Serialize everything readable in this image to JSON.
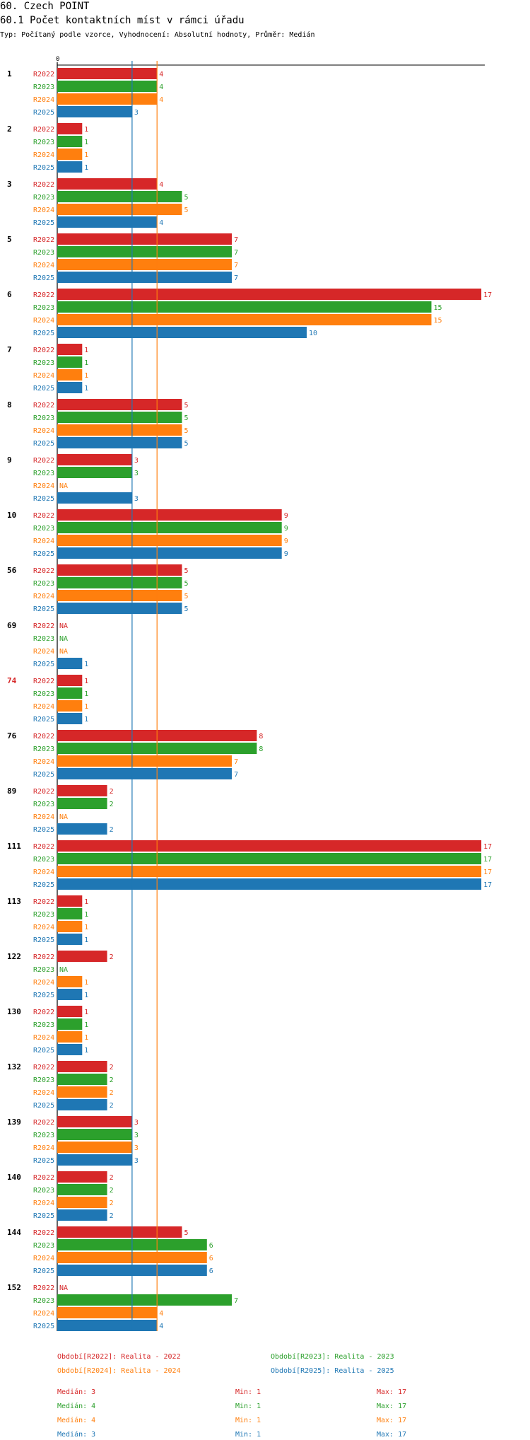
{
  "header": {
    "title": "60. Czech POINT",
    "subtitle": "60.1 Počet kontaktních míst v rámci úřadu",
    "meta": "Typ: Počítaný podle vzorce, Vyhodnocení: Absolutní hodnoty, Průměr: Medián"
  },
  "colors": {
    "R2022": "#d62728",
    "R2023": "#2ca02c",
    "R2024": "#ff7f0e",
    "R2025": "#1f77b4"
  },
  "chart_data": {
    "type": "bar",
    "orientation": "horizontal",
    "axis_zero_label": "0",
    "xlim": [
      0,
      17
    ],
    "series_names": [
      "R2022",
      "R2023",
      "R2024",
      "R2025"
    ],
    "na_label": "NA",
    "groups": [
      {
        "label": "1",
        "highlight": false,
        "values": [
          4,
          4,
          4,
          3
        ]
      },
      {
        "label": "2",
        "highlight": false,
        "values": [
          1,
          1,
          1,
          1
        ]
      },
      {
        "label": "3",
        "highlight": false,
        "values": [
          4,
          5,
          5,
          4
        ]
      },
      {
        "label": "5",
        "highlight": false,
        "values": [
          7,
          7,
          7,
          7
        ]
      },
      {
        "label": "6",
        "highlight": false,
        "values": [
          17,
          15,
          15,
          10
        ]
      },
      {
        "label": "7",
        "highlight": false,
        "values": [
          1,
          1,
          1,
          1
        ]
      },
      {
        "label": "8",
        "highlight": false,
        "values": [
          5,
          5,
          5,
          5
        ]
      },
      {
        "label": "9",
        "highlight": false,
        "values": [
          3,
          3,
          null,
          3
        ]
      },
      {
        "label": "10",
        "highlight": false,
        "values": [
          9,
          9,
          9,
          9
        ]
      },
      {
        "label": "56",
        "highlight": false,
        "values": [
          5,
          5,
          5,
          5
        ]
      },
      {
        "label": "69",
        "highlight": false,
        "values": [
          null,
          null,
          null,
          1
        ]
      },
      {
        "label": "74",
        "highlight": true,
        "values": [
          1,
          1,
          1,
          1
        ]
      },
      {
        "label": "76",
        "highlight": false,
        "values": [
          8,
          8,
          7,
          7
        ]
      },
      {
        "label": "89",
        "highlight": false,
        "values": [
          2,
          2,
          null,
          2
        ]
      },
      {
        "label": "111",
        "highlight": false,
        "values": [
          17,
          17,
          17,
          17
        ]
      },
      {
        "label": "113",
        "highlight": false,
        "values": [
          1,
          1,
          1,
          1
        ]
      },
      {
        "label": "122",
        "highlight": false,
        "values": [
          2,
          null,
          1,
          1
        ]
      },
      {
        "label": "130",
        "highlight": false,
        "values": [
          1,
          1,
          1,
          1
        ]
      },
      {
        "label": "132",
        "highlight": false,
        "values": [
          2,
          2,
          2,
          2
        ]
      },
      {
        "label": "139",
        "highlight": false,
        "values": [
          3,
          3,
          3,
          3
        ]
      },
      {
        "label": "140",
        "highlight": false,
        "values": [
          2,
          2,
          2,
          2
        ]
      },
      {
        "label": "144",
        "highlight": false,
        "values": [
          5,
          6,
          6,
          6
        ]
      },
      {
        "label": "152",
        "highlight": false,
        "values": [
          null,
          7,
          4,
          4
        ]
      }
    ],
    "reference_lines": [
      {
        "series": "R2025",
        "value": 3
      },
      {
        "series": "R2024",
        "value": 4
      }
    ]
  },
  "legend": {
    "periods": [
      {
        "key": "R2022",
        "text": "Období[R2022]: Realita - 2022"
      },
      {
        "key": "R2023",
        "text": "Období[R2023]: Realita - 2023"
      },
      {
        "key": "R2024",
        "text": "Období[R2024]: Realita - 2024"
      },
      {
        "key": "R2025",
        "text": "Období[R2025]: Realita - 2025"
      }
    ],
    "stats": [
      {
        "key": "R2022",
        "median": "Medián: 3",
        "min": "Min: 1",
        "max": "Max: 17"
      },
      {
        "key": "R2023",
        "median": "Medián: 4",
        "min": "Min: 1",
        "max": "Max: 17"
      },
      {
        "key": "R2024",
        "median": "Medián: 4",
        "min": "Min: 1",
        "max": "Max: 17"
      },
      {
        "key": "R2025",
        "median": "Medián: 3",
        "min": "Min: 1",
        "max": "Max: 17"
      }
    ]
  }
}
